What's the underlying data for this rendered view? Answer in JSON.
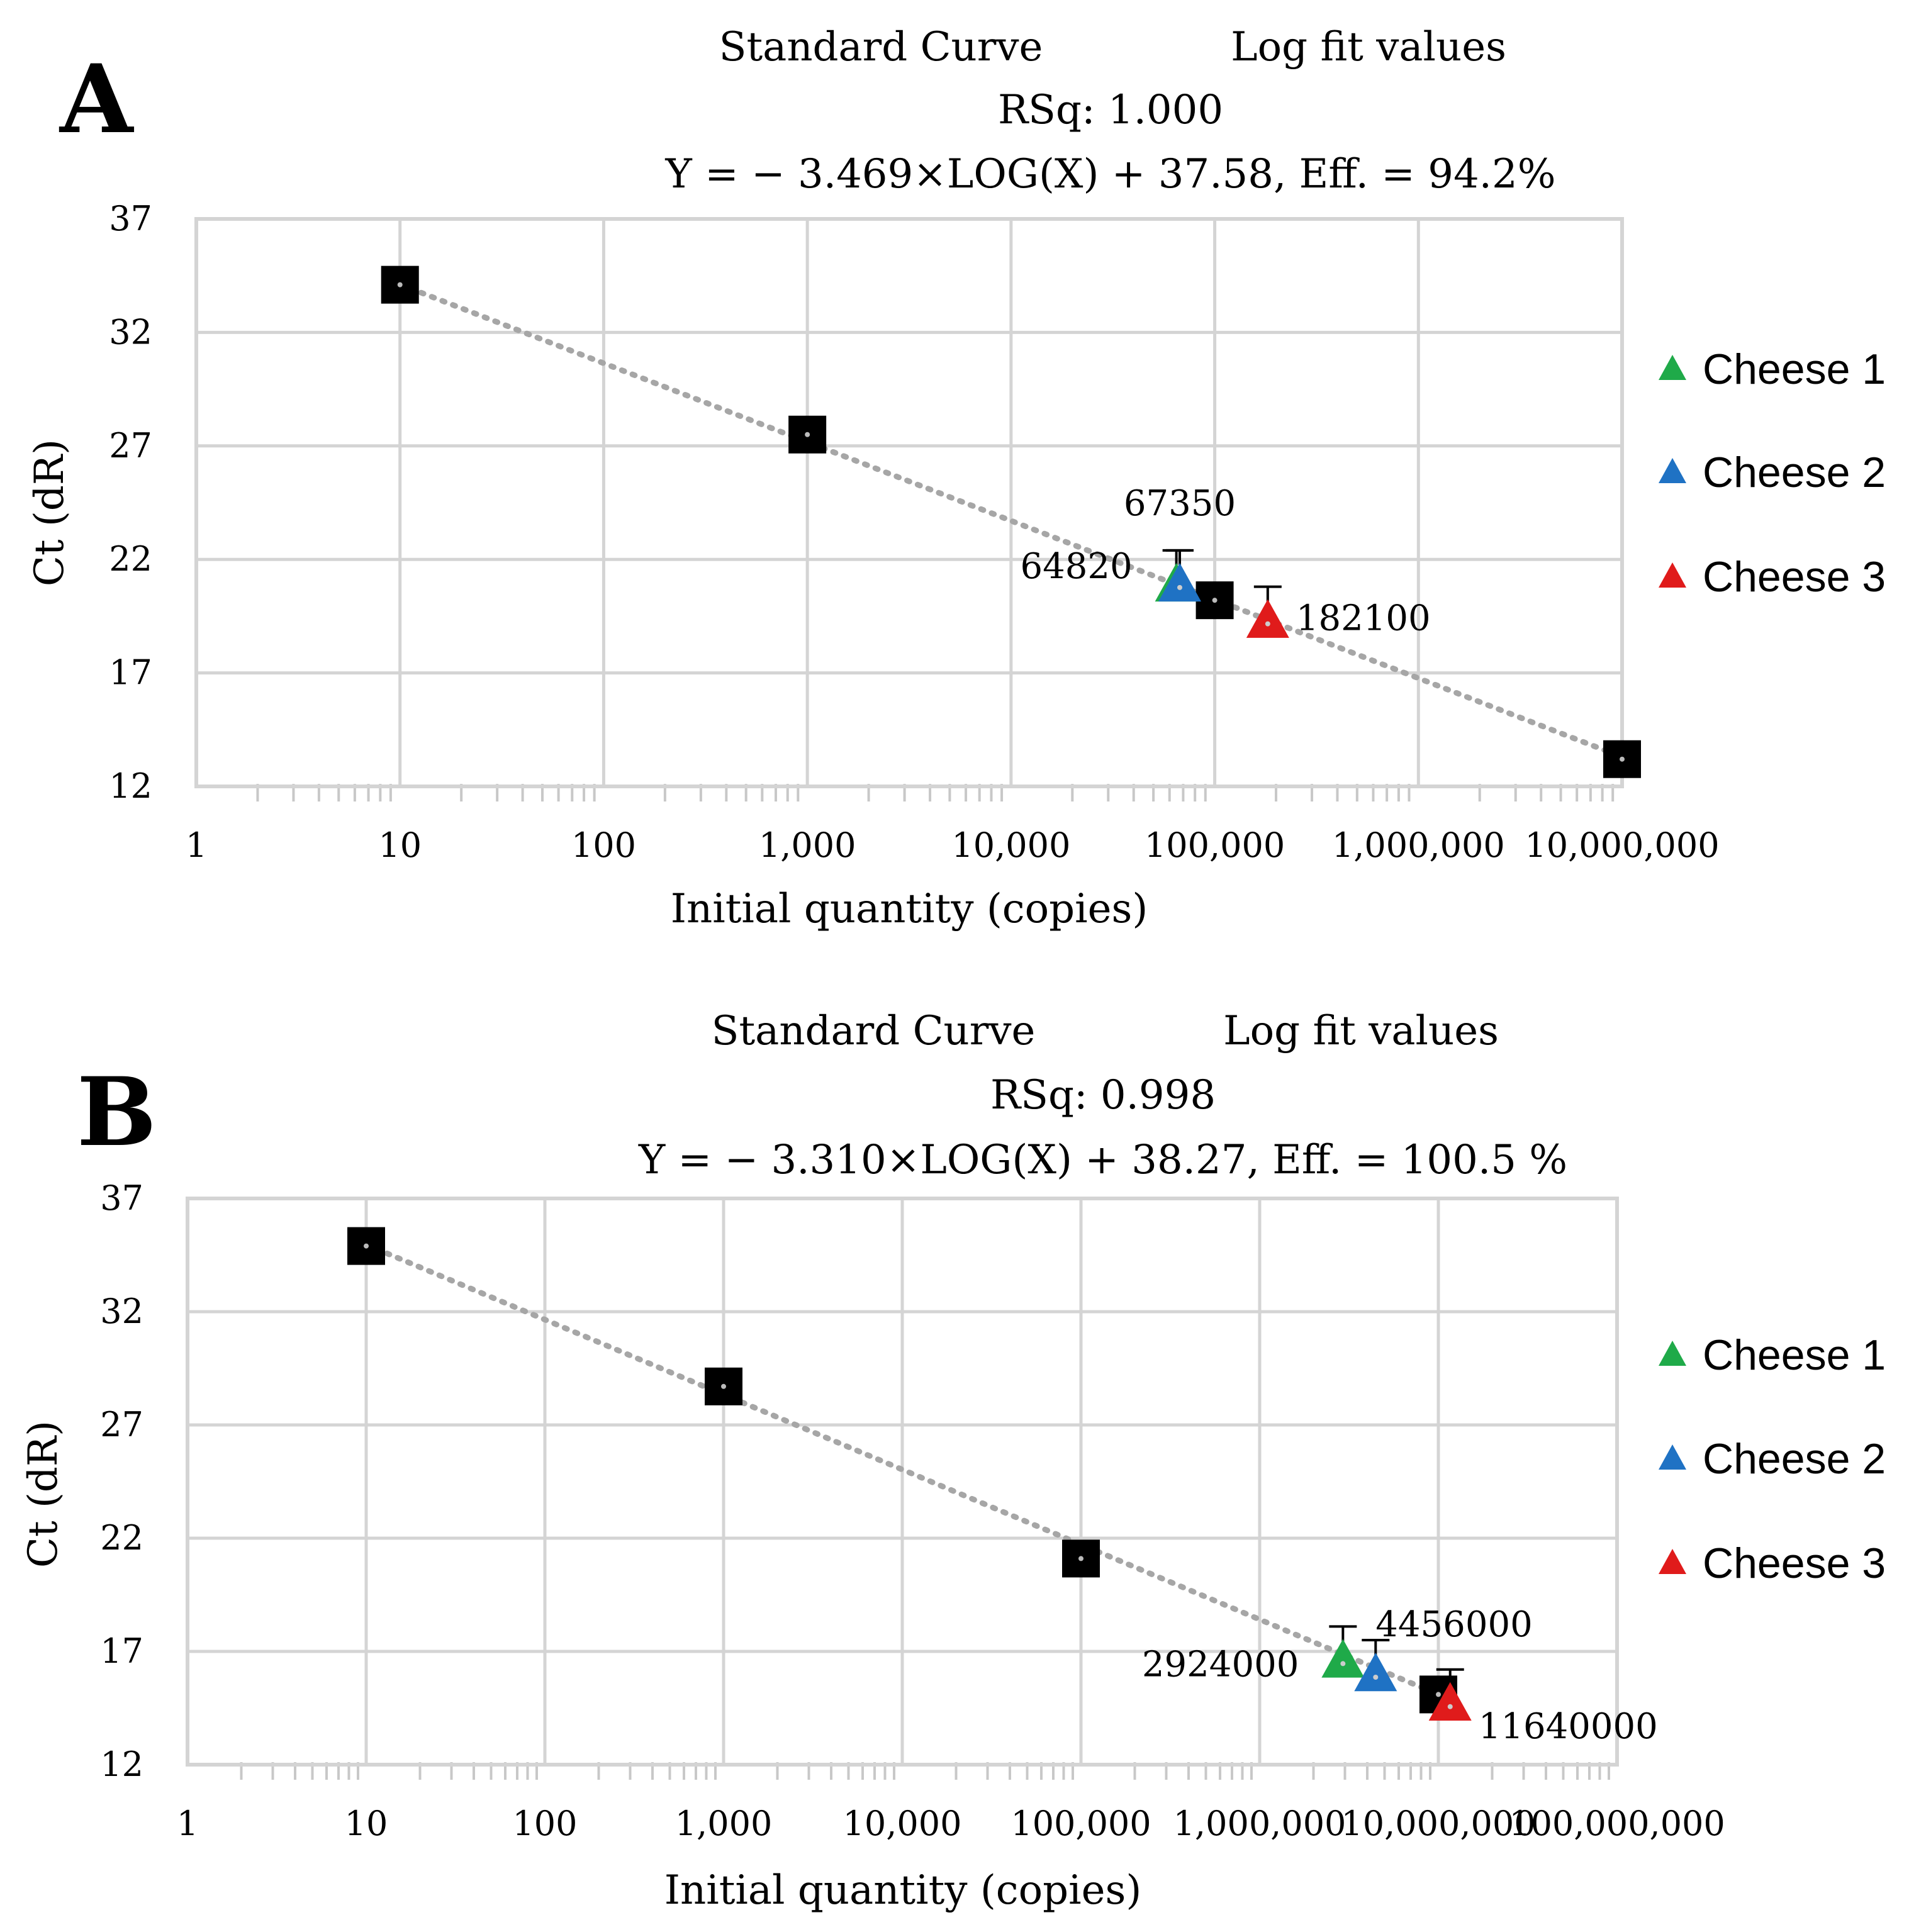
{
  "chart_data": [
    {
      "type": "scatter",
      "panel_label": "A",
      "title": "Standard Curve",
      "subtitle": "Log fit values",
      "rsq_text": "RSq: 1.000",
      "equation_text": "Y = − 3.469×LOG(X) + 37.58, Eff. = 94.2%",
      "fit": {
        "slope": -3.469,
        "intercept": 37.58
      },
      "xlabel": "Initial quantity (copies)",
      "ylabel": "Ct (dR)",
      "xscale": "log",
      "xlim": [
        1,
        10000000
      ],
      "ylim": [
        12,
        37
      ],
      "x_tick_values": [
        1,
        10,
        100,
        1000,
        10000,
        100000,
        1000000,
        10000000
      ],
      "x_tick_labels": [
        "1",
        "10",
        "100",
        "1,000",
        "10,000",
        "100,000",
        "1,000,000",
        "10,000,000"
      ],
      "y_ticks": [
        12,
        17,
        22,
        27,
        32,
        37
      ],
      "legend_position": "right",
      "standards": {
        "x": [
          10,
          1000,
          100000,
          10000000
        ],
        "y": [
          34.1,
          27.5,
          20.2,
          13.2
        ],
        "color": "#000000"
      },
      "samples": [
        {
          "name": "Cheese 1",
          "color": "#1faa49",
          "x": 64820,
          "y": 20.9,
          "label": "64820"
        },
        {
          "name": "Cheese 2",
          "color": "#1f72c4",
          "x": 67350,
          "y": 20.9,
          "label": "67350"
        },
        {
          "name": "Cheese 3",
          "color": "#e01b1b",
          "x": 182100,
          "y": 19.3,
          "label": "182100"
        }
      ]
    },
    {
      "type": "scatter",
      "panel_label": "B",
      "title": "Standard Curve",
      "subtitle": "Log fit values",
      "rsq_text": "RSq: 0.998",
      "equation_text": "Y = − 3.310×LOG(X) + 38.27, Eff. = 100.5 %",
      "fit": {
        "slope": -3.31,
        "intercept": 38.27
      },
      "xlabel": "Initial quantity (copies)",
      "ylabel": "Ct (dR)",
      "xscale": "log",
      "xlim": [
        1,
        100000000
      ],
      "ylim": [
        12,
        37
      ],
      "x_tick_values": [
        1,
        10,
        100,
        1000,
        10000,
        100000,
        1000000,
        10000000,
        100000000
      ],
      "x_tick_labels": [
        "1",
        "10",
        "100",
        "1,000",
        "10,000",
        "100,000",
        "1,000,000",
        "10,000,000",
        "100,000,000"
      ],
      "y_ticks": [
        12,
        17,
        22,
        27,
        32,
        37
      ],
      "legend_position": "right",
      "standards": {
        "x": [
          10,
          1000,
          100000,
          10000000
        ],
        "y": [
          34.9,
          28.7,
          21.1,
          15.1
        ],
        "color": "#000000"
      },
      "samples": [
        {
          "name": "Cheese 1",
          "color": "#1faa49",
          "x": 2924000,
          "y": 16.6,
          "label": "2924000"
        },
        {
          "name": "Cheese 2",
          "color": "#1f72c4",
          "x": 4456000,
          "y": 16.0,
          "label": "4456000"
        },
        {
          "name": "Cheese 3",
          "color": "#e01b1b",
          "x": 11640000,
          "y": 14.7,
          "label": "11640000"
        }
      ]
    }
  ]
}
